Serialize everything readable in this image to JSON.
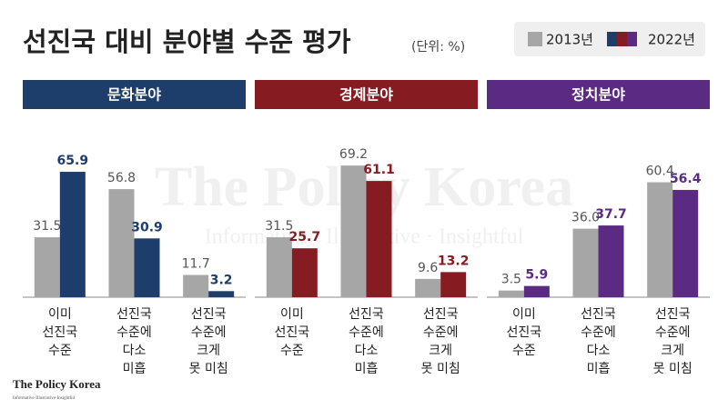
{
  "title": "선진국 대비 분야별 수준 평가",
  "subtitle": "(단위: %)",
  "watermark": "The Policy Korea",
  "watermark_tagline": "Informative · Illustrative · Insightful",
  "logo": "The Policy Korea",
  "logo_tagline": "Informative·Illustrative·Insightful",
  "chart_data": [
    {
      "type": "bar",
      "title": "문화분야",
      "color": "#1d3d6b",
      "categories": [
        [
          "이미",
          "선진국",
          "수준"
        ],
        [
          "선진국",
          "수준에",
          "다소",
          "미흡"
        ],
        [
          "선진국",
          "수준에",
          "크게",
          "못 미침"
        ]
      ],
      "series": [
        {
          "name": "2013년",
          "color": "#a6a6a6",
          "values": [
            31.5,
            56.8,
            11.7
          ]
        },
        {
          "name": "2022년",
          "color": "#1d3d6b",
          "values": [
            65.9,
            30.9,
            3.2
          ]
        }
      ],
      "ylim": [
        0,
        75
      ]
    },
    {
      "type": "bar",
      "title": "경제분야",
      "color": "#861c22",
      "categories": [
        [
          "이미",
          "선진국",
          "수준"
        ],
        [
          "선진국",
          "수준에",
          "다소",
          "미흡"
        ],
        [
          "선진국",
          "수준에",
          "크게",
          "못 미침"
        ]
      ],
      "series": [
        {
          "name": "2013년",
          "color": "#a6a6a6",
          "values": [
            31.5,
            69.2,
            9.6
          ]
        },
        {
          "name": "2022년",
          "color": "#861c22",
          "values": [
            25.7,
            61.1,
            13.2
          ]
        }
      ],
      "ylim": [
        0,
        75
      ]
    },
    {
      "type": "bar",
      "title": "정치분야",
      "color": "#5b2a82",
      "categories": [
        [
          "이미",
          "선진국",
          "수준"
        ],
        [
          "선진국",
          "수준에",
          "다소",
          "미흡"
        ],
        [
          "선진국",
          "수준에",
          "크게",
          "못 미침"
        ]
      ],
      "series": [
        {
          "name": "2013년",
          "color": "#a6a6a6",
          "values": [
            3.5,
            36.0,
            60.4
          ]
        },
        {
          "name": "2022년",
          "color": "#5b2a82",
          "values": [
            5.9,
            37.7,
            56.4
          ]
        }
      ],
      "ylim": [
        0,
        75
      ],
      "value_labels": [
        [
          "3.5",
          "36.0",
          "60.4"
        ],
        [
          "5.9",
          "37.7",
          "56.4"
        ]
      ]
    }
  ]
}
